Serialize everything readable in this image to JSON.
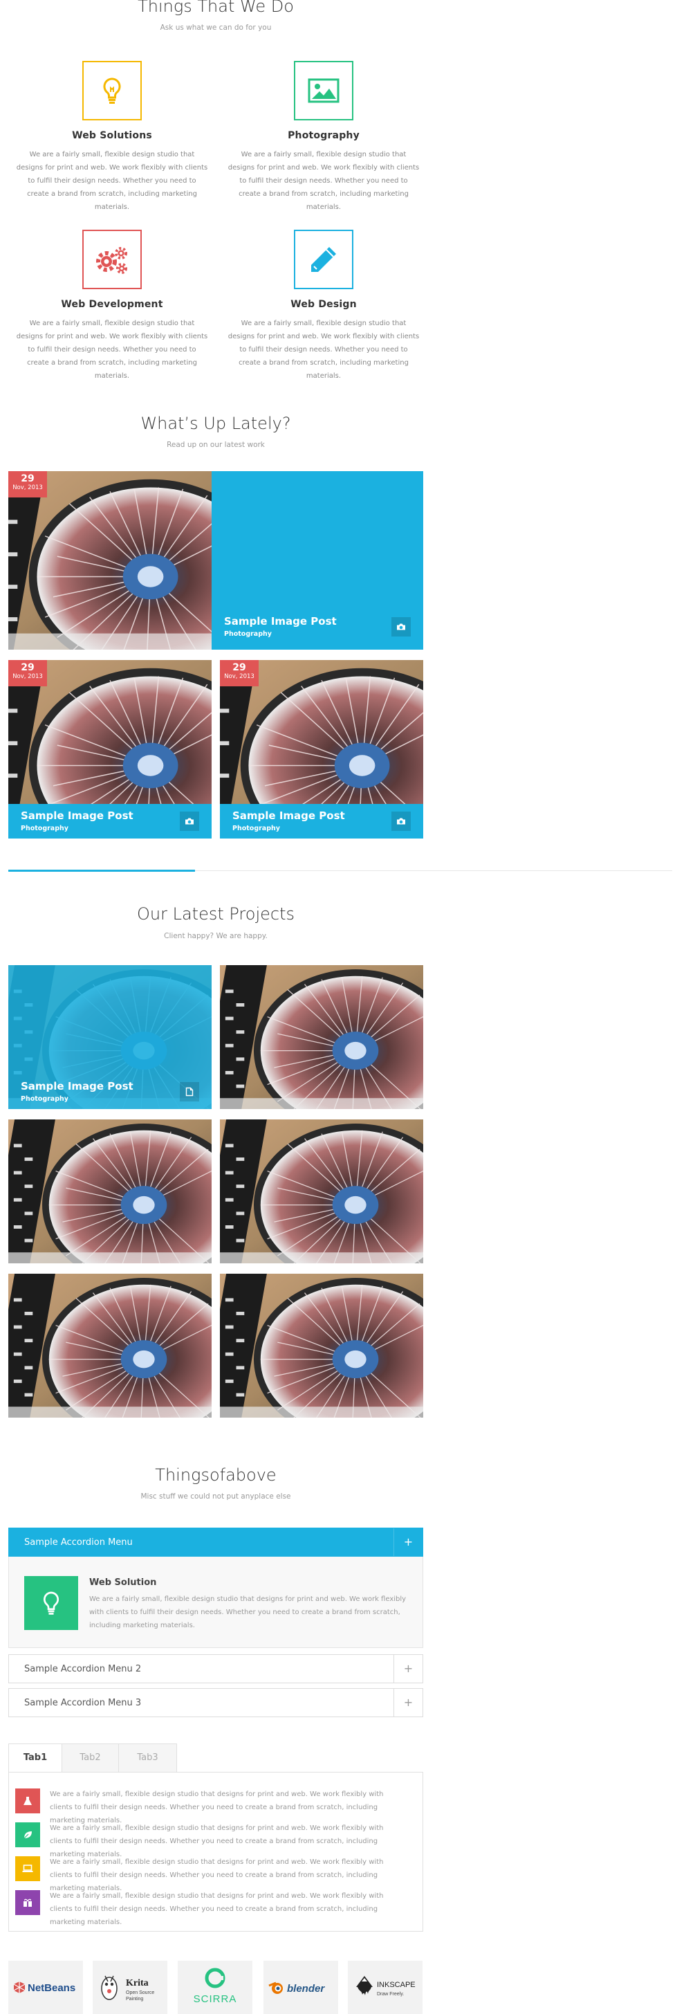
{
  "services_section": {
    "title": "Things That We Do",
    "subtitle": "Ask us what we can do for you",
    "items": [
      {
        "title": "Web Solutions",
        "icon": "lightbulb-icon",
        "color": "#f5b800",
        "text": "We are a fairly small, flexible design studio that designs for print and web. We work flexibly with clients to fulfil their design needs. Whether you need to create a brand from scratch, including marketing materials."
      },
      {
        "title": "Photography",
        "icon": "image-icon",
        "color": "#26c281",
        "text": "We are a fairly small, flexible design studio that designs for print and web. We work flexibly with clients to fulfil their design needs. Whether you need to create a brand from scratch, including marketing materials."
      },
      {
        "title": "Web Development",
        "icon": "gears-icon",
        "color": "#e05555",
        "text": "We are a fairly small, flexible design studio that designs for print and web. We work flexibly with clients to fulfil their design needs. Whether you need to create a brand from scratch, including marketing materials."
      },
      {
        "title": "Web Design",
        "icon": "pencil-icon",
        "color": "#1bb1e0",
        "text": "We are a fairly small, flexible design studio that designs for print and web. We work flexibly with clients to fulfil their design needs. Whether you need to create a brand from scratch, including marketing materials."
      }
    ]
  },
  "blog_section": {
    "title": "What’s Up Lately?",
    "subtitle": "Read up on our latest work",
    "posts": [
      {
        "day": "29",
        "month": "Nov, 2013"
      },
      {
        "title": "Sample Image Post",
        "category": "Photography",
        "icon": "camera-icon"
      },
      {
        "day": "29",
        "month": "Nov, 2013",
        "title": "Sample Image Post",
        "category": "Photography",
        "icon": "camera-icon"
      },
      {
        "day": "29",
        "month": "Nov, 2013",
        "title": "Sample Image Post",
        "category": "Photography",
        "icon": "camera-icon"
      }
    ]
  },
  "projects_section": {
    "title": "Our Latest Projects",
    "subtitle": "Client happy? We are happy.",
    "featured": {
      "title": "Sample Image Post",
      "category": "Photography",
      "icon": "document-icon"
    }
  },
  "misc_section": {
    "title": "Thingsofabove",
    "subtitle": "Misc stuff we could not put anyplace else"
  },
  "accordion": {
    "items": [
      {
        "label": "Sample Accordion Menu",
        "toggle": "+"
      },
      {
        "label": "Sample Accordion Menu 2",
        "toggle": "+"
      },
      {
        "label": "Sample Accordion Menu 3",
        "toggle": "+"
      }
    ],
    "panel": {
      "title": "Web Solution",
      "text": "We are a fairly small, flexible design studio that designs for print and web. We work flexibly with clients to fulfil their design needs. Whether you need to create a brand from scratch, including marketing materials."
    }
  },
  "tabs": {
    "labels": [
      "Tab1",
      "Tab2",
      "Tab3"
    ],
    "active": "Tab1",
    "rows": [
      {
        "color": "#e05555",
        "icon": "flask-icon",
        "text": "We are a fairly small, flexible design studio that designs for print and web. We work flexibly with clients to fulfil their design needs. Whether you need to create a brand from scratch, including marketing materials."
      },
      {
        "color": "#26c281",
        "icon": "leaf-icon",
        "text": "We are a fairly small, flexible design studio that designs for print and web. We work flexibly with clients to fulfil their design needs. Whether you need to create a brand from scratch, including marketing materials."
      },
      {
        "color": "#f5b800",
        "icon": "laptop-icon",
        "text": "We are a fairly small, flexible design studio that designs for print and web. We work flexibly with clients to fulfil their design needs. Whether you need to create a brand from scratch, including marketing materials."
      },
      {
        "color": "#8e44ad",
        "icon": "gift-icon",
        "text": "We are a fairly small, flexible design studio that designs for print and web. We work flexibly with clients to fulfil their design needs. Whether you need to create a brand from scratch, including marketing materials."
      }
    ]
  },
  "clients": {
    "logos": [
      {
        "name": "NetBeans"
      },
      {
        "name": "Krita",
        "tagline1": "Open Source",
        "tagline2": "Painting"
      },
      {
        "name": "SCIRRA"
      },
      {
        "name": "blender"
      },
      {
        "name": "INKSCAPE",
        "tagline1": "Draw Freely."
      }
    ]
  },
  "colors": {
    "accent": "#1bb1e0",
    "date_badge": "#e05555",
    "text_muted": "#888888"
  }
}
